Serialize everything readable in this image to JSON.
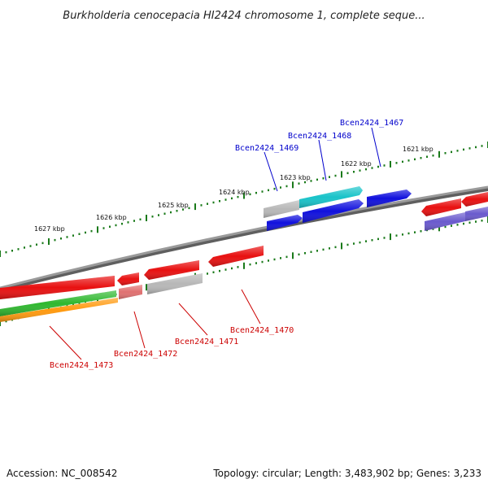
{
  "title": "Burkholderia cenocepacia HI2424 chromosome 1, complete seque...",
  "footer": {
    "accession": "Accession: NC_008542",
    "topology": "Topology: circular; Length: 3,483,902 bp; Genes: 3,233"
  },
  "ticks": [
    {
      "label": "1621 kbp"
    },
    {
      "label": "1622 kbp"
    },
    {
      "label": "1623 kbp"
    },
    {
      "label": "1624 kbp"
    },
    {
      "label": "1625 kbp"
    },
    {
      "label": "1626 kbp"
    },
    {
      "label": "1627 kbp"
    }
  ],
  "colors": {
    "backbone": "#808080",
    "tick": "#1a7a1a",
    "forward_label": "#0000cc",
    "reverse_label": "#cc0000",
    "red": "#e81010",
    "blue": "#1010dd",
    "cyan": "#19c3c9",
    "gray": "#b8b8b8",
    "green": "#2fb82f",
    "orange": "#ff9a10",
    "purple": "#6a5acd",
    "pink": "#e07070"
  },
  "forward_labels": [
    {
      "name": "Bcen2424_1469"
    },
    {
      "name": "Bcen2424_1468"
    },
    {
      "name": "Bcen2424_1467"
    }
  ],
  "reverse_labels": [
    {
      "name": "Bcen2424_1470"
    },
    {
      "name": "Bcen2424_1471"
    },
    {
      "name": "Bcen2424_1472"
    },
    {
      "name": "Bcen2424_1473"
    }
  ]
}
